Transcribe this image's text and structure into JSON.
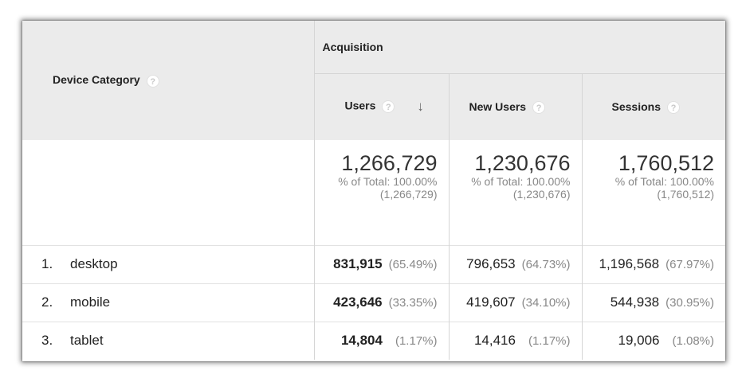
{
  "header": {
    "dimension_label": "Device Category",
    "group_label": "Acquisition",
    "columns": [
      {
        "label": "Users"
      },
      {
        "label": "New Users"
      },
      {
        "label": "Sessions"
      }
    ],
    "help_glyph": "?",
    "sort_glyph": "↓"
  },
  "totals": [
    {
      "value": "1,266,729",
      "pct_line": "% of Total: 100.00%",
      "abs_line": "(1,266,729)"
    },
    {
      "value": "1,230,676",
      "pct_line": "% of Total: 100.00%",
      "abs_line": "(1,230,676)"
    },
    {
      "value": "1,760,512",
      "pct_line": "% of Total: 100.00%",
      "abs_line": "(1,760,512)"
    }
  ],
  "rows": [
    {
      "index": "1.",
      "name": "desktop",
      "users": "831,915",
      "users_pct": "(65.49%)",
      "new_users": "796,653",
      "new_users_pct": "(64.73%)",
      "sessions": "1,196,568",
      "sessions_pct": "(67.97%)"
    },
    {
      "index": "2.",
      "name": "mobile",
      "users": "423,646",
      "users_pct": "(33.35%)",
      "new_users": "419,607",
      "new_users_pct": "(34.10%)",
      "sessions": "544,938",
      "sessions_pct": "(30.95%)"
    },
    {
      "index": "3.",
      "name": "tablet",
      "users": "14,804",
      "users_pct": "(1.17%)",
      "new_users": "14,416",
      "new_users_pct": "(1.17%)",
      "sessions": "19,006",
      "sessions_pct": "(1.08%)"
    }
  ]
}
